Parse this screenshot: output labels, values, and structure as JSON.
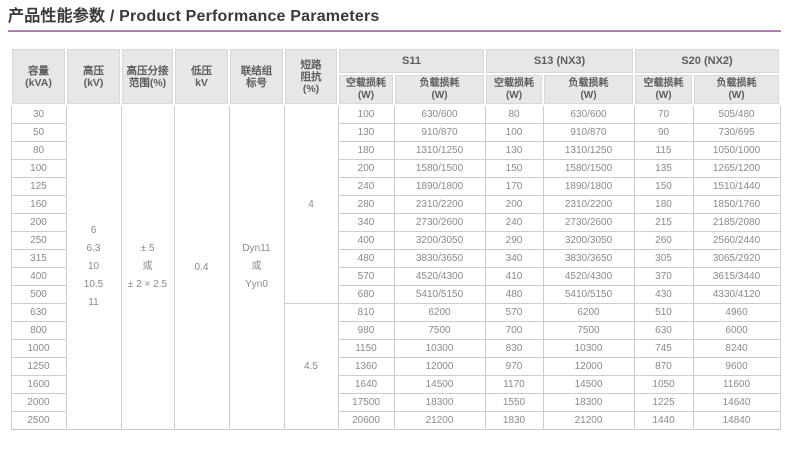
{
  "page": {
    "title": "产品性能参数 / Product Performance Parameters",
    "accent_color": "#b176ae"
  },
  "table": {
    "left_headers": [
      {
        "name": "capacity",
        "lines": [
          "容量",
          "(kVA)"
        ]
      },
      {
        "name": "hv-voltage",
        "lines": [
          "高压",
          "(kV)"
        ]
      },
      {
        "name": "tap-range",
        "lines": [
          "高压分接",
          "范围(%)"
        ]
      },
      {
        "name": "lv-voltage",
        "lines": [
          "低压",
          "kV"
        ]
      },
      {
        "name": "vector-group",
        "lines": [
          "联结组",
          "标号"
        ]
      },
      {
        "name": "impedance",
        "lines": [
          "短路",
          "阻抗",
          "(%)"
        ]
      }
    ],
    "series_groups": [
      "S11",
      "S13 (NX3)",
      "S20 (NX2)"
    ],
    "loss_headers": {
      "no_load": [
        "空载损耗",
        "(W)"
      ],
      "load": [
        "负载损耗",
        "(W)"
      ]
    },
    "merged": {
      "hv_kv": [
        "6",
        "6.3",
        "10",
        "10.5",
        "11"
      ],
      "tap_range": [
        "± 5",
        "或",
        "± 2 × 2.5"
      ],
      "lv_kv": "0.4",
      "vector_group": [
        "Dyn11",
        "或",
        "Yyn0"
      ],
      "impedance": [
        {
          "value": "4",
          "row_span": 11
        },
        {
          "value": "4.5",
          "row_span": 7
        }
      ]
    },
    "rows": [
      {
        "capacity": "30",
        "values": [
          "100",
          "630/600",
          "80",
          "630/600",
          "70",
          "505/480"
        ]
      },
      {
        "capacity": "50",
        "values": [
          "130",
          "910/870",
          "100",
          "910/870",
          "90",
          "730/695"
        ]
      },
      {
        "capacity": "80",
        "values": [
          "180",
          "1310/1250",
          "130",
          "1310/1250",
          "115",
          "1050/1000"
        ]
      },
      {
        "capacity": "100",
        "values": [
          "200",
          "1580/1500",
          "150",
          "1580/1500",
          "135",
          "1265/1200"
        ]
      },
      {
        "capacity": "125",
        "values": [
          "240",
          "1890/1800",
          "170",
          "1890/1800",
          "150",
          "1510/1440"
        ]
      },
      {
        "capacity": "160",
        "values": [
          "280",
          "2310/2200",
          "200",
          "2310/2200",
          "180",
          "1850/1760"
        ]
      },
      {
        "capacity": "200",
        "values": [
          "340",
          "2730/2600",
          "240",
          "2730/2600",
          "215",
          "2185/2080"
        ]
      },
      {
        "capacity": "250",
        "values": [
          "400",
          "3200/3050",
          "290",
          "3200/3050",
          "260",
          "2560/2440"
        ]
      },
      {
        "capacity": "315",
        "values": [
          "480",
          "3830/3650",
          "340",
          "3830/3650",
          "305",
          "3065/2920"
        ]
      },
      {
        "capacity": "400",
        "values": [
          "570",
          "4520/4300",
          "410",
          "4520/4300",
          "370",
          "3615/3440"
        ]
      },
      {
        "capacity": "500",
        "values": [
          "680",
          "5410/5150",
          "480",
          "5410/5150",
          "430",
          "4330/4120"
        ]
      },
      {
        "capacity": "630",
        "values": [
          "810",
          "6200",
          "570",
          "6200",
          "510",
          "4960"
        ]
      },
      {
        "capacity": "800",
        "values": [
          "980",
          "7500",
          "700",
          "7500",
          "630",
          "6000"
        ]
      },
      {
        "capacity": "1000",
        "values": [
          "1150",
          "10300",
          "830",
          "10300",
          "745",
          "8240"
        ]
      },
      {
        "capacity": "1250",
        "values": [
          "1360",
          "12000",
          "970",
          "12000",
          "870",
          "9600"
        ]
      },
      {
        "capacity": "1600",
        "values": [
          "1640",
          "14500",
          "1170",
          "14500",
          "1050",
          "11600"
        ]
      },
      {
        "capacity": "2000",
        "values": [
          "17500",
          "18300",
          "1550",
          "18300",
          "1225",
          "14640"
        ]
      },
      {
        "capacity": "2500",
        "values": [
          "20600",
          "21200",
          "1830",
          "21200",
          "1440",
          "14840"
        ]
      }
    ],
    "value_col_names": [
      "s11-no-load",
      "s11-load",
      "s13-no-load",
      "s13-load",
      "s20-no-load",
      "s20-load"
    ]
  }
}
